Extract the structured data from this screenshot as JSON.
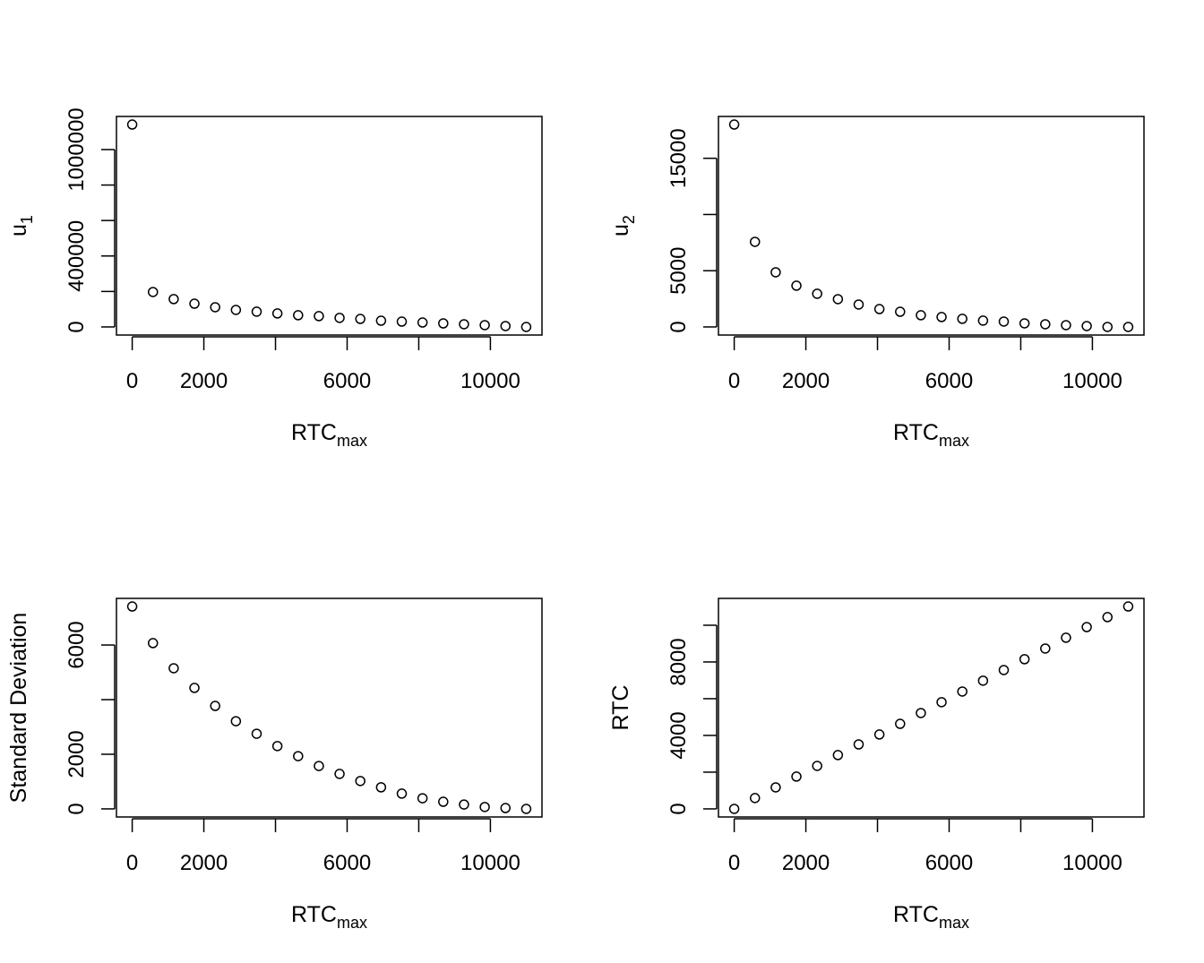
{
  "chart_data": [
    {
      "type": "scatter",
      "xlabel": "RTC",
      "xlabel_sub": "max",
      "ylabel": "u",
      "ylabel_sub": "1",
      "x_ticks": [
        0,
        2000,
        4000,
        6000,
        8000,
        10000
      ],
      "x_tick_labels": [
        "0",
        "2000",
        "",
        "6000",
        "",
        "10000"
      ],
      "y_ticks": [
        0,
        200000,
        400000,
        600000,
        800000,
        1000000
      ],
      "y_tick_labels": [
        "0",
        "",
        "400000",
        "",
        "",
        "1000000"
      ],
      "x": [
        0,
        579,
        1158,
        1737,
        2316,
        2895,
        3474,
        4053,
        4632,
        5211,
        5789,
        6368,
        6947,
        7526,
        8105,
        8684,
        9263,
        9842,
        10421,
        11000
      ],
      "y": [
        1141000,
        197000,
        157000,
        131000,
        111000,
        96000,
        86000,
        76000,
        66000,
        61000,
        51000,
        45000,
        35000,
        30000,
        25000,
        20000,
        15000,
        10000,
        5000,
        0
      ],
      "grid": false,
      "marker": "open-circle"
    },
    {
      "type": "scatter",
      "xlabel": "RTC",
      "xlabel_sub": "max",
      "ylabel": "u",
      "ylabel_sub": "2",
      "x_ticks": [
        0,
        2000,
        4000,
        6000,
        8000,
        10000
      ],
      "x_tick_labels": [
        "0",
        "2000",
        "",
        "6000",
        "",
        "10000"
      ],
      "y_ticks": [
        0,
        5000,
        10000,
        15000
      ],
      "y_tick_labels": [
        "0",
        "5000",
        "",
        "15000"
      ],
      "x": [
        0,
        579,
        1158,
        1737,
        2316,
        2895,
        3474,
        4053,
        4632,
        5211,
        5789,
        6368,
        6947,
        7526,
        8105,
        8684,
        9263,
        9842,
        10421,
        11000
      ],
      "y": [
        18000,
        7570,
        4860,
        3670,
        2950,
        2470,
        1990,
        1590,
        1350,
        1040,
        880,
        720,
        560,
        480,
        320,
        240,
        160,
        80,
        0,
        0
      ],
      "grid": false,
      "marker": "open-circle"
    },
    {
      "type": "scatter",
      "xlabel": "RTC",
      "xlabel_sub": "max",
      "ylabel": "Standard Deviation",
      "ylabel_sub": "",
      "x_ticks": [
        0,
        2000,
        4000,
        6000,
        8000,
        10000
      ],
      "x_tick_labels": [
        "0",
        "2000",
        "",
        "6000",
        "",
        "10000"
      ],
      "y_ticks": [
        0,
        2000,
        4000,
        6000
      ],
      "y_tick_labels": [
        "0",
        "2000",
        "",
        "6000"
      ],
      "x": [
        0,
        579,
        1158,
        1737,
        2316,
        2895,
        3474,
        4053,
        4632,
        5211,
        5789,
        6368,
        6947,
        7526,
        8105,
        8684,
        9263,
        9842,
        10421,
        11000
      ],
      "y": [
        7410,
        6070,
        5150,
        4430,
        3770,
        3210,
        2750,
        2300,
        1930,
        1570,
        1280,
        1020,
        790,
        560,
        390,
        260,
        160,
        70,
        30,
        0
      ],
      "grid": false,
      "marker": "open-circle"
    },
    {
      "type": "scatter",
      "xlabel": "RTC",
      "xlabel_sub": "max",
      "ylabel": "RTC",
      "ylabel_sub": "",
      "x_ticks": [
        0,
        2000,
        4000,
        6000,
        8000,
        10000
      ],
      "x_tick_labels": [
        "0",
        "2000",
        "",
        "6000",
        "",
        "10000"
      ],
      "y_ticks": [
        0,
        2000,
        4000,
        6000,
        8000,
        10000
      ],
      "y_tick_labels": [
        "0",
        "",
        "4000",
        "",
        "8000",
        ""
      ],
      "x": [
        0,
        579,
        1158,
        1737,
        2316,
        2895,
        3474,
        4053,
        4632,
        5211,
        5789,
        6368,
        6947,
        7526,
        8105,
        8684,
        9263,
        9842,
        10421,
        11000
      ],
      "y": [
        0,
        590,
        1170,
        1760,
        2340,
        2930,
        3510,
        4050,
        4630,
        5220,
        5810,
        6390,
        6980,
        7560,
        8150,
        8730,
        9320,
        9900,
        10440,
        11020
      ],
      "grid": false,
      "marker": "open-circle"
    }
  ]
}
